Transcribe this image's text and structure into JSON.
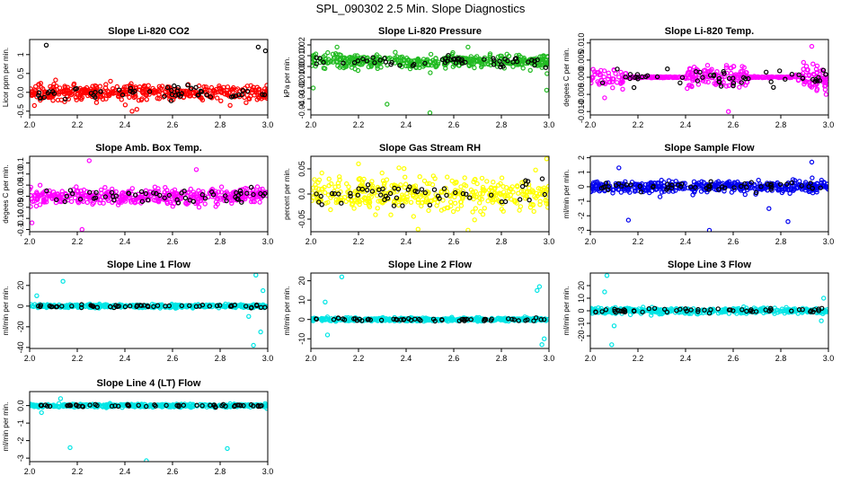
{
  "title": "SPL_090302  2.5 Min. Slope Diagnostics",
  "chart_data": [
    {
      "type": "scatter",
      "title": "Slope Li-820 CO2",
      "xlabel": "",
      "ylabel": "Licor ppm per min.",
      "xlim": [
        2.0,
        3.0
      ],
      "ylim": [
        -0.6,
        1.4
      ],
      "xticks": [
        2.0,
        2.2,
        2.4,
        2.6,
        2.8,
        3.0
      ],
      "yticks": [
        -0.5,
        0.0,
        0.5,
        1.0
      ],
      "color": "#ff0000",
      "center": 0.0,
      "spread": 0.18,
      "outliers": [
        [
          2.07,
          1.25
        ],
        [
          2.96,
          1.2
        ],
        [
          2.99,
          1.1
        ],
        [
          2.02,
          -0.35
        ],
        [
          2.43,
          -0.5
        ],
        [
          2.45,
          -0.45
        ]
      ]
    },
    {
      "type": "scatter",
      "title": "Slope Li-820 Pressure",
      "xlabel": "",
      "ylabel": "kPa per min.",
      "xlim": [
        2.0,
        3.0
      ],
      "ylim": [
        -0.045,
        0.025
      ],
      "xticks": [
        2.0,
        2.2,
        2.4,
        2.6,
        2.8,
        3.0
      ],
      "yticks": [
        -0.04,
        -0.03,
        -0.02,
        -0.01,
        0.0,
        0.01,
        0.02
      ],
      "color": "#22bb22",
      "center": 0.005,
      "spread": 0.006,
      "outliers": [
        [
          2.11,
          0.018
        ],
        [
          2.5,
          -0.043
        ],
        [
          2.32,
          -0.035
        ],
        [
          2.66,
          0.018
        ],
        [
          2.99,
          -0.022
        ],
        [
          2.01,
          -0.02
        ]
      ]
    },
    {
      "type": "scatter",
      "title": "Slope Li-820 Temp.",
      "xlabel": "",
      "ylabel": "degees C per min.",
      "xlim": [
        2.0,
        3.0
      ],
      "ylim": [
        -0.011,
        0.011
      ],
      "xticks": [
        2.0,
        2.2,
        2.4,
        2.6,
        2.8,
        3.0
      ],
      "yticks": [
        -0.01,
        -0.005,
        0.0,
        0.005,
        0.01
      ],
      "color": "#ff00ff",
      "center": 0.0,
      "spread": 0.003,
      "flat_from": 2.15,
      "flat_to": 2.4,
      "flat2_from": 2.66,
      "flat2_to": 2.86,
      "outliers": [
        [
          2.06,
          -0.006
        ],
        [
          2.93,
          0.009
        ],
        [
          2.58,
          -0.01
        ],
        [
          2.99,
          -0.005
        ]
      ]
    },
    {
      "type": "scatter",
      "title": "Slope Amb. Box Temp.",
      "xlabel": "",
      "ylabel": "degees C per min.",
      "xlim": [
        2.0,
        3.0
      ],
      "ylim": [
        -0.16,
        0.18
      ],
      "xticks": [
        2.0,
        2.2,
        2.4,
        2.6,
        2.8,
        3.0
      ],
      "yticks": [
        -0.15,
        -0.1,
        -0.05,
        0.0,
        0.05,
        0.1,
        0.15
      ],
      "color": "#ff00ff",
      "center": 0.0,
      "spread": 0.035,
      "outliers": [
        [
          2.25,
          0.16
        ],
        [
          2.22,
          -0.15
        ],
        [
          2.7,
          0.12
        ],
        [
          2.01,
          -0.12
        ]
      ]
    },
    {
      "type": "scatter",
      "title": "Slope Gas Stream RH",
      "xlabel": "",
      "ylabel": "percent per min.",
      "xlim": [
        2.0,
        3.0
      ],
      "ylim": [
        -0.075,
        0.075
      ],
      "xticks": [
        2.0,
        2.2,
        2.4,
        2.6,
        2.8,
        3.0
      ],
      "yticks": [
        -0.05,
        0.0,
        0.05
      ],
      "color": "#ffff00",
      "center": 0.0,
      "spread": 0.028,
      "outliers": [
        [
          2.2,
          0.06
        ],
        [
          2.45,
          -0.07
        ],
        [
          2.66,
          -0.072
        ],
        [
          2.99,
          0.07
        ]
      ]
    },
    {
      "type": "scatter",
      "title": "Slope Sample Flow",
      "xlabel": "",
      "ylabel": "ml/min per min.",
      "xlim": [
        2.0,
        3.0
      ],
      "ylim": [
        -3.1,
        2.1
      ],
      "xticks": [
        2.0,
        2.2,
        2.4,
        2.6,
        2.8,
        3.0
      ],
      "yticks": [
        -3,
        -2,
        -1,
        0,
        1,
        2
      ],
      "color": "#0000ee",
      "center": 0.0,
      "spread": 0.35,
      "outliers": [
        [
          2.12,
          1.3
        ],
        [
          2.16,
          -2.3
        ],
        [
          2.5,
          -3.0
        ],
        [
          2.83,
          -2.4
        ],
        [
          2.93,
          1.7
        ],
        [
          2.75,
          -1.5
        ]
      ]
    },
    {
      "type": "scatter",
      "title": "Slope Line 1 Flow",
      "xlabel": "",
      "ylabel": "ml/min per min.",
      "xlim": [
        2.0,
        3.0
      ],
      "ylim": [
        -41,
        32
      ],
      "xticks": [
        2.0,
        2.2,
        2.4,
        2.6,
        2.8,
        3.0
      ],
      "yticks": [
        -40,
        -20,
        0,
        20
      ],
      "color": "#00e5e5",
      "center": 0.0,
      "spread": 1.5,
      "outliers": [
        [
          2.14,
          24
        ],
        [
          2.95,
          30
        ],
        [
          2.94,
          -38
        ],
        [
          2.97,
          -25
        ],
        [
          2.98,
          15
        ],
        [
          2.92,
          -10
        ],
        [
          2.03,
          10
        ]
      ]
    },
    {
      "type": "scatter",
      "title": "Slope Line 2 Flow",
      "xlabel": "",
      "ylabel": "ml/min per min.",
      "xlim": [
        2.0,
        3.0
      ],
      "ylim": [
        -15,
        24
      ],
      "xticks": [
        2.0,
        2.2,
        2.4,
        2.6,
        2.8,
        3.0
      ],
      "yticks": [
        -10,
        0,
        10,
        20
      ],
      "color": "#00e5e5",
      "center": 0.0,
      "spread": 0.8,
      "outliers": [
        [
          2.13,
          22
        ],
        [
          2.07,
          -8
        ],
        [
          2.06,
          9
        ],
        [
          2.95,
          15
        ],
        [
          2.96,
          17
        ],
        [
          2.97,
          -13
        ],
        [
          2.98,
          -10
        ]
      ]
    },
    {
      "type": "scatter",
      "title": "Slope Line 3 Flow",
      "xlabel": "",
      "ylabel": "ml/min per min.",
      "xlim": [
        2.0,
        3.0
      ],
      "ylim": [
        -30,
        30
      ],
      "xticks": [
        2.0,
        2.2,
        2.4,
        2.6,
        2.8,
        3.0
      ],
      "yticks": [
        -20,
        -10,
        0,
        10,
        20
      ],
      "color": "#00e5e5",
      "center": 0.0,
      "spread": 2.0,
      "outliers": [
        [
          2.07,
          28
        ],
        [
          2.09,
          -27
        ],
        [
          2.06,
          15
        ],
        [
          2.1,
          -12
        ],
        [
          2.98,
          10
        ],
        [
          2.97,
          -8
        ]
      ]
    },
    {
      "type": "scatter",
      "title": "Slope Line 4 (LT) Flow",
      "xlabel": "",
      "ylabel": "ml/min per min.",
      "xlim": [
        2.0,
        3.0
      ],
      "ylim": [
        -3.2,
        0.8
      ],
      "xticks": [
        2.0,
        2.2,
        2.4,
        2.6,
        2.8,
        3.0
      ],
      "yticks": [
        -3,
        -2,
        -1,
        0
      ],
      "color": "#00e5e5",
      "center": 0.0,
      "spread": 0.08,
      "outliers": [
        [
          2.17,
          -2.4
        ],
        [
          2.49,
          -3.15
        ],
        [
          2.83,
          -2.45
        ],
        [
          2.13,
          0.4
        ],
        [
          2.05,
          -0.4
        ]
      ]
    }
  ]
}
